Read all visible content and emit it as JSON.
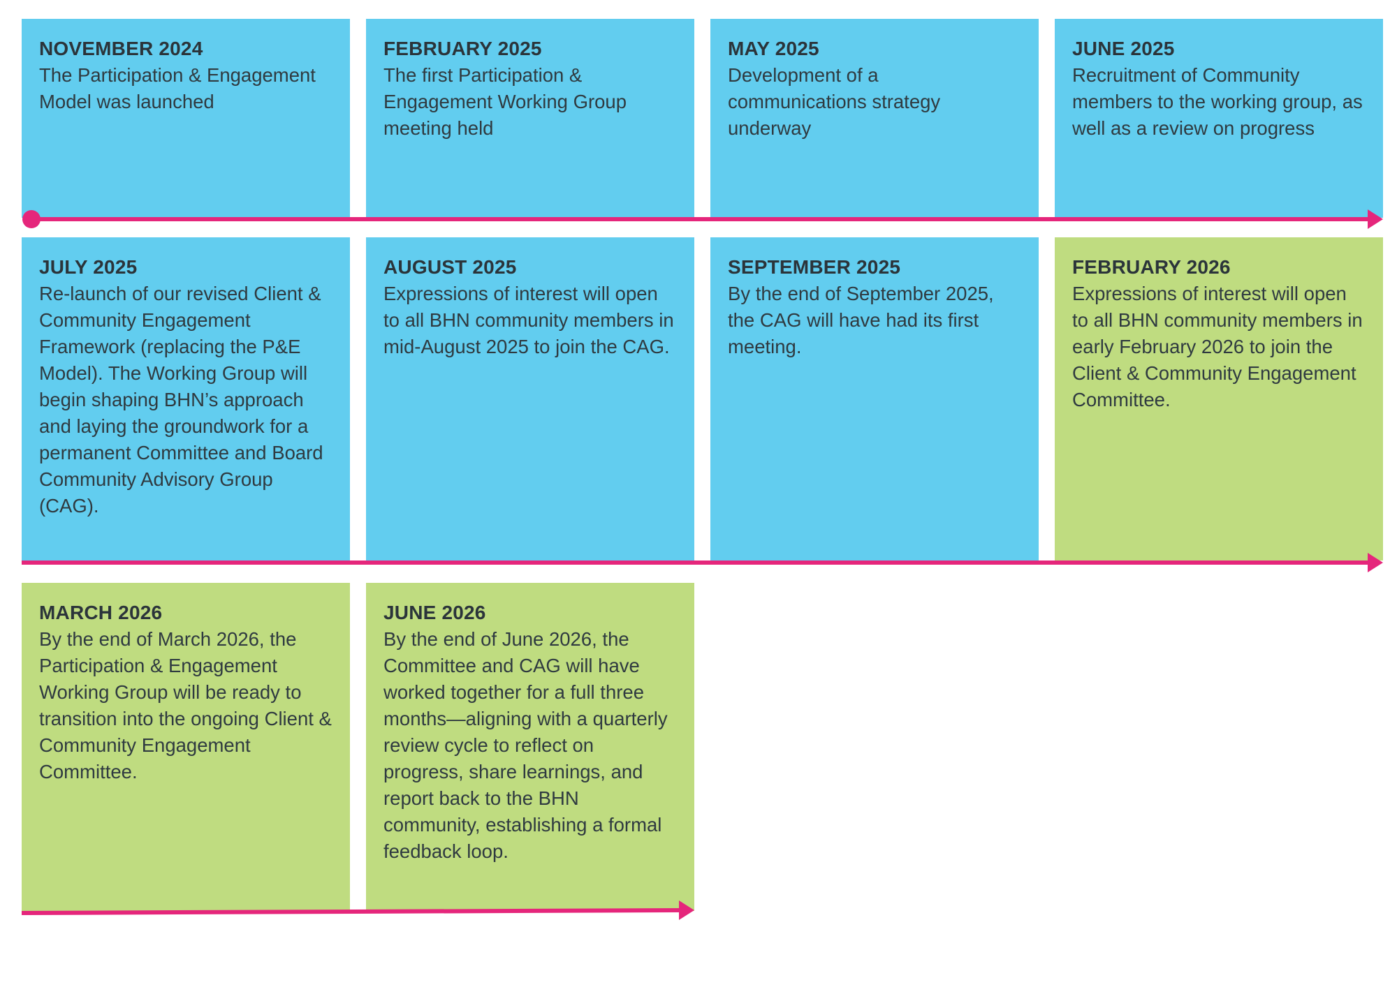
{
  "colors": {
    "past_card": "#62cdef",
    "future_card": "#bfdc80",
    "timeline": "#e5267b",
    "text": "#2f3a40"
  },
  "rows": [
    {
      "items": [
        {
          "date": "NOVEMBER 2024",
          "text": "The Participation & Engagement Model was launched",
          "status": "blue"
        },
        {
          "date": "FEBRUARY 2025",
          "text": "The first Participation & Engagement Working Group meeting held",
          "status": "blue"
        },
        {
          "date": "MAY 2025",
          "text": "Development of a communications strategy underway",
          "status": "blue"
        },
        {
          "date": "JUNE 2025",
          "text": "Recruitment of Community members to the working group, as well as a review on progress",
          "status": "blue"
        }
      ]
    },
    {
      "items": [
        {
          "date": "JULY 2025",
          "text": "Re-launch of our revised Client & Community Engagement Framework (replacing the P&E Model). The Working Group will begin shaping BHN’s approach and laying the groundwork for a permanent Committee and Board Community Advisory Group (CAG).",
          "status": "blue"
        },
        {
          "date": "AUGUST 2025",
          "text": "Expressions of interest will open to all BHN community members in mid-August 2025 to join the CAG.",
          "status": "blue"
        },
        {
          "date": "SEPTEMBER 2025",
          "text": "By the end of September 2025, the CAG will have had its first meeting.",
          "status": "blue"
        },
        {
          "date": "FEBRUARY 2026",
          "text": "Expressions of interest will open to all BHN community members in early February 2026 to join the Client & Community Engagement Committee.",
          "status": "green"
        }
      ]
    },
    {
      "items": [
        {
          "date": "MARCH 2026",
          "text": "By the end of March 2026, the Participation & Engagement Working Group will be ready to transition into the ongoing Client & Community Engagement Committee.",
          "status": "green"
        },
        {
          "date": "JUNE 2026",
          "text": "By the end of June 2026, the Committee and CAG will have worked together for a full three months—aligning with a quarterly review cycle to reflect on progress, share learnings, and report back to the BHN community, establishing a formal feedback loop.",
          "status": "green"
        }
      ]
    }
  ]
}
